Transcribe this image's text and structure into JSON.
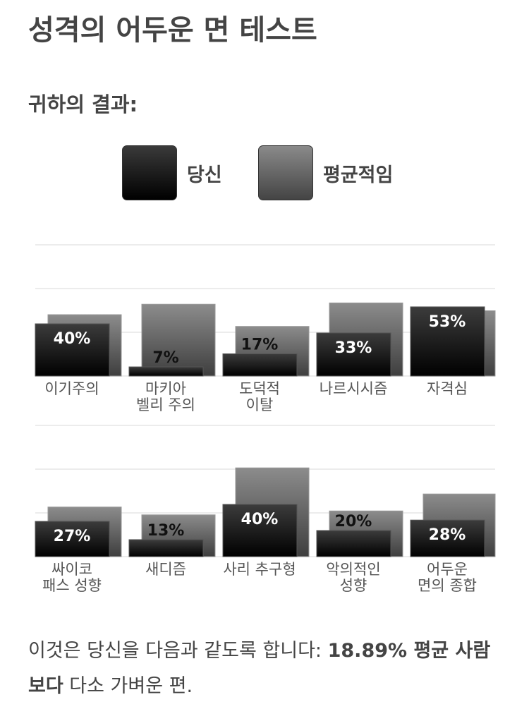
{
  "title": "성격의 어두운 면 테스트",
  "subtitle": "귀하의 결과:",
  "legend": {
    "you": "당신",
    "average": "평균적임"
  },
  "colors": {
    "you": "#000000",
    "average": "#6e6e6e",
    "text": "#444444"
  },
  "chart_data": [
    {
      "type": "bar",
      "categories": [
        "이기주의",
        "마키아\n벨리 주의",
        "도덕적\n이탈",
        "나르시시즘",
        "자격심"
      ],
      "series": [
        {
          "name": "당신",
          "values": [
            40,
            7,
            17,
            33,
            53
          ]
        },
        {
          "name": "평균적임",
          "values": [
            47,
            55,
            38,
            56,
            50
          ]
        }
      ],
      "data_labels": [
        "40%",
        "7%",
        "17%",
        "33%",
        "53%"
      ],
      "ylim": [
        0,
        100
      ],
      "grid": true
    },
    {
      "type": "bar",
      "categories": [
        "싸이코\n패스 성향",
        "새디즘",
        "사리 추구형",
        "악의적인\n성향",
        "어두운\n면의 종합"
      ],
      "series": [
        {
          "name": "당신",
          "values": [
            27,
            13,
            40,
            20,
            28
          ]
        },
        {
          "name": "평균적임",
          "values": [
            38,
            32,
            68,
            35,
            48
          ]
        }
      ],
      "data_labels": [
        "27%",
        "13%",
        "40%",
        "20%",
        "28%"
      ],
      "ylim": [
        0,
        100
      ],
      "grid": true
    }
  ],
  "footer": {
    "prefix": "이것은 당신을 다음과 같도록 합니다: ",
    "bold": "18.89% 평균 사람보다",
    "suffix": " 다소 가벼운 편."
  }
}
